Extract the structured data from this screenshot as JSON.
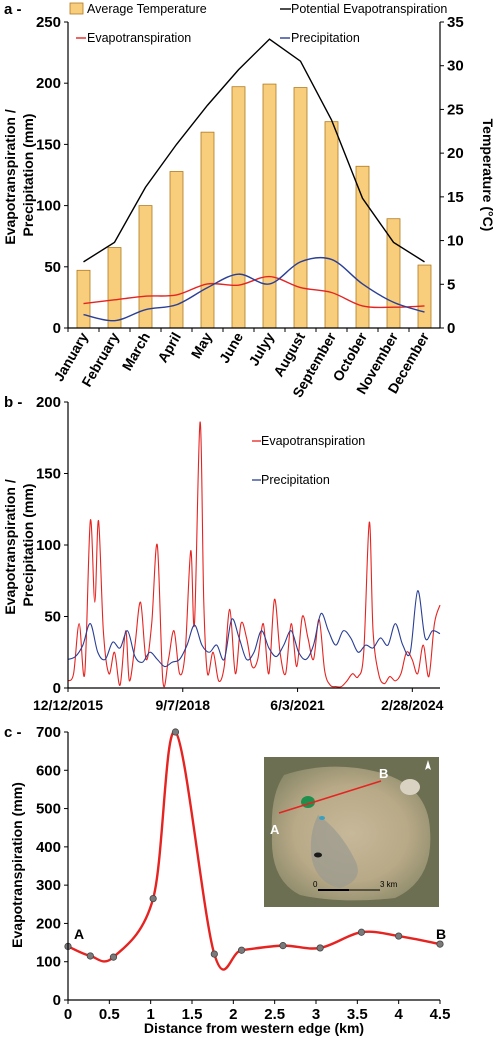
{
  "chart_data": [
    {
      "panel_label": "a -",
      "type": "bar",
      "categories": [
        "January",
        "February",
        "March",
        "April",
        "May",
        "June",
        "Julyy",
        "August",
        "September",
        "October",
        "November",
        "December"
      ],
      "left_axis": {
        "label": "Evapotranspiration / Precipitation (mm)",
        "ylim": [
          0,
          250
        ],
        "ticks": [
          "0",
          "50",
          "100",
          "150",
          "200",
          "250"
        ]
      },
      "right_axis": {
        "label": "Temperature (°C)",
        "ylim": [
          0,
          35
        ],
        "ticks": [
          "0",
          "5",
          "10",
          "15",
          "20",
          "25",
          "30",
          "35"
        ]
      },
      "series": [
        {
          "name": "Average Temperature",
          "type": "bar",
          "axis": "right",
          "color": "#f8cd7b",
          "values": [
            6.6,
            9.2,
            14.0,
            17.9,
            22.4,
            27.6,
            27.9,
            27.5,
            23.6,
            18.5,
            12.5,
            7.2
          ]
        },
        {
          "name": "Potential Evapotranspiration",
          "type": "line",
          "axis": "left",
          "color": "#000000",
          "values": [
            54,
            70,
            115,
            150,
            182,
            211,
            236,
            218,
            170,
            106,
            70,
            54
          ]
        },
        {
          "name": "Evapotranspiration",
          "type": "line",
          "axis": "left",
          "color": "#e52421",
          "values": [
            20,
            23,
            26,
            27,
            36,
            35,
            42,
            33,
            29,
            18,
            17,
            18
          ]
        },
        {
          "name": "Precipitation",
          "type": "line",
          "axis": "left",
          "color": "#2a3f95",
          "values": [
            11,
            6,
            15,
            19,
            33,
            44,
            36,
            54,
            56,
            36,
            21,
            13
          ]
        }
      ]
    },
    {
      "panel_label": "b -",
      "type": "line",
      "left_axis": {
        "label": "Evapotranspiration / Precipitation (mm)",
        "ylim": [
          0,
          200
        ],
        "ticks": [
          "0",
          "50",
          "100",
          "150",
          "200"
        ]
      },
      "x_ticks": [
        "12/12/2015",
        "9/7/2018",
        "6/3/2021",
        "2/28/2024"
      ],
      "x_tick_positions": [
        0.0,
        0.3085,
        0.6171,
        0.9256
      ],
      "series": [
        {
          "name": "Evapotranspiration",
          "color": "#e52421",
          "points": [
            [
              0.0,
              5
            ],
            [
              0.015,
              10
            ],
            [
              0.03,
              45
            ],
            [
              0.045,
              10
            ],
            [
              0.06,
              117
            ],
            [
              0.072,
              60
            ],
            [
              0.082,
              117
            ],
            [
              0.095,
              40
            ],
            [
              0.11,
              10
            ],
            [
              0.125,
              25
            ],
            [
              0.14,
              2
            ],
            [
              0.155,
              40
            ],
            [
              0.165,
              5
            ],
            [
              0.18,
              30
            ],
            [
              0.195,
              60
            ],
            [
              0.21,
              20
            ],
            [
              0.225,
              45
            ],
            [
              0.24,
              100
            ],
            [
              0.255,
              5
            ],
            [
              0.27,
              20
            ],
            [
              0.285,
              40
            ],
            [
              0.3,
              10
            ],
            [
              0.315,
              25
            ],
            [
              0.33,
              96
            ],
            [
              0.34,
              45
            ],
            [
              0.355,
              186
            ],
            [
              0.365,
              60
            ],
            [
              0.375,
              10
            ],
            [
              0.39,
              25
            ],
            [
              0.405,
              5
            ],
            [
              0.42,
              15
            ],
            [
              0.435,
              55
            ],
            [
              0.45,
              10
            ],
            [
              0.465,
              45
            ],
            [
              0.48,
              35
            ],
            [
              0.495,
              15
            ],
            [
              0.51,
              20
            ],
            [
              0.525,
              45
            ],
            [
              0.54,
              10
            ],
            [
              0.555,
              62
            ],
            [
              0.57,
              25
            ],
            [
              0.585,
              10
            ],
            [
              0.6,
              45
            ],
            [
              0.615,
              15
            ],
            [
              0.63,
              50
            ],
            [
              0.645,
              35
            ],
            [
              0.66,
              20
            ],
            [
              0.675,
              48
            ],
            [
              0.69,
              12
            ],
            [
              0.705,
              2
            ],
            [
              0.72,
              1
            ],
            [
              0.735,
              1
            ],
            [
              0.75,
              5
            ],
            [
              0.765,
              10
            ],
            [
              0.78,
              8
            ],
            [
              0.795,
              25
            ],
            [
              0.81,
              116
            ],
            [
              0.82,
              40
            ],
            [
              0.835,
              10
            ],
            [
              0.85,
              3
            ],
            [
              0.865,
              8
            ],
            [
              0.88,
              5
            ],
            [
              0.895,
              10
            ],
            [
              0.91,
              25
            ],
            [
              0.925,
              20
            ],
            [
              0.94,
              10
            ],
            [
              0.955,
              30
            ],
            [
              0.97,
              8
            ],
            [
              0.985,
              45
            ],
            [
              1.0,
              58
            ]
          ]
        },
        {
          "name": "Precipitation",
          "color": "#2a3f95",
          "points": [
            [
              0.0,
              20
            ],
            [
              0.02,
              22
            ],
            [
              0.04,
              30
            ],
            [
              0.06,
              45
            ],
            [
              0.08,
              25
            ],
            [
              0.1,
              20
            ],
            [
              0.12,
              32
            ],
            [
              0.14,
              28
            ],
            [
              0.16,
              40
            ],
            [
              0.18,
              22
            ],
            [
              0.2,
              18
            ],
            [
              0.22,
              25
            ],
            [
              0.24,
              20
            ],
            [
              0.26,
              15
            ],
            [
              0.28,
              18
            ],
            [
              0.3,
              20
            ],
            [
              0.32,
              30
            ],
            [
              0.34,
              44
            ],
            [
              0.36,
              30
            ],
            [
              0.38,
              25
            ],
            [
              0.4,
              30
            ],
            [
              0.42,
              20
            ],
            [
              0.44,
              48
            ],
            [
              0.46,
              35
            ],
            [
              0.48,
              20
            ],
            [
              0.5,
              25
            ],
            [
              0.52,
              40
            ],
            [
              0.54,
              28
            ],
            [
              0.56,
              22
            ],
            [
              0.58,
              30
            ],
            [
              0.6,
              40
            ],
            [
              0.62,
              25
            ],
            [
              0.64,
              20
            ],
            [
              0.66,
              30
            ],
            [
              0.68,
              52
            ],
            [
              0.7,
              40
            ],
            [
              0.72,
              30
            ],
            [
              0.74,
              40
            ],
            [
              0.76,
              35
            ],
            [
              0.78,
              25
            ],
            [
              0.8,
              30
            ],
            [
              0.82,
              28
            ],
            [
              0.84,
              35
            ],
            [
              0.86,
              30
            ],
            [
              0.88,
              45
            ],
            [
              0.9,
              30
            ],
            [
              0.92,
              25
            ],
            [
              0.94,
              68
            ],
            [
              0.96,
              35
            ],
            [
              0.98,
              40
            ],
            [
              1.0,
              38
            ]
          ]
        }
      ]
    },
    {
      "panel_label": "c -",
      "type": "line",
      "xlabel": "Distance from western edge (km)",
      "ylabel": "Evapotranspiration (mm)",
      "xlim": [
        0,
        4.5
      ],
      "ylim": [
        0,
        700
      ],
      "x_ticks": [
        "0",
        "0.5",
        "1",
        "1.5",
        "2",
        "2.5",
        "3",
        "3.5",
        "4",
        "4.5"
      ],
      "y_ticks": [
        "0",
        "100",
        "200",
        "300",
        "400",
        "500",
        "600",
        "700"
      ],
      "series": [
        {
          "name": "Evapotranspiration",
          "color": "#e52421",
          "points": [
            [
              0,
              140
            ],
            [
              0.27,
              115
            ],
            [
              0.55,
              112
            ],
            [
              1.03,
              265
            ],
            [
              1.3,
              700
            ],
            [
              1.77,
              120
            ],
            [
              2.1,
              130
            ],
            [
              2.6,
              142
            ],
            [
              3.05,
              136
            ],
            [
              3.55,
              177
            ],
            [
              4.0,
              167
            ],
            [
              4.5,
              146
            ]
          ]
        }
      ],
      "annotations": {
        "start_label": "A",
        "end_label": "B"
      }
    }
  ],
  "inset_map": {
    "label_a": "A",
    "label_b": "B",
    "scale_left": "0",
    "scale_right": "3 km"
  }
}
